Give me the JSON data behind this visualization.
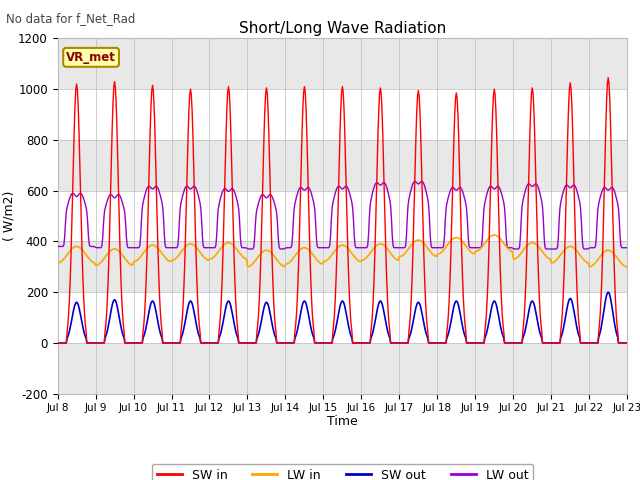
{
  "title": "Short/Long Wave Radiation",
  "xlabel": "Time",
  "ylabel": "( W/m2)",
  "ylim": [
    -200,
    1200
  ],
  "yticks": [
    -200,
    0,
    200,
    400,
    600,
    800,
    1000,
    1200
  ],
  "n_days": 15,
  "xtick_labels": [
    "Jul 8",
    "Jul 9",
    "Jul 10",
    "Jul 11",
    "Jul 12",
    "Jul 13",
    "Jul 14",
    "Jul 15",
    "Jul 16",
    "Jul 17",
    "Jul 18",
    "Jul 19",
    "Jul 20",
    "Jul 21",
    "Jul 22",
    "Jul 23"
  ],
  "no_data_text": "No data for f_Net_Rad",
  "legend_label": "VR_met",
  "sw_in_color": "#ff0000",
  "lw_in_color": "#ffa500",
  "sw_out_color": "#0000cc",
  "lw_out_color": "#9900cc",
  "fig_bg": "#ffffff",
  "plot_bg": "#ffffff",
  "band_light": "#ffffff",
  "band_dark": "#e8e8e8",
  "sw_in_peaks": [
    1020,
    1030,
    1015,
    1000,
    1010,
    1005,
    1010,
    1010,
    1005,
    995,
    985,
    1000,
    1005,
    1025,
    1045
  ],
  "sw_out_peaks": [
    160,
    170,
    165,
    165,
    165,
    160,
    165,
    165,
    165,
    160,
    165,
    165,
    165,
    175,
    200
  ],
  "lw_in_base": [
    315,
    305,
    320,
    325,
    330,
    300,
    310,
    320,
    325,
    340,
    350,
    360,
    330,
    315,
    300
  ],
  "lw_out_base": [
    380,
    375,
    375,
    375,
    375,
    370,
    375,
    375,
    375,
    375,
    375,
    375,
    370,
    370,
    375
  ],
  "lw_out_peaks": [
    615,
    610,
    645,
    645,
    635,
    610,
    640,
    645,
    660,
    665,
    640,
    645,
    655,
    650,
    640
  ]
}
